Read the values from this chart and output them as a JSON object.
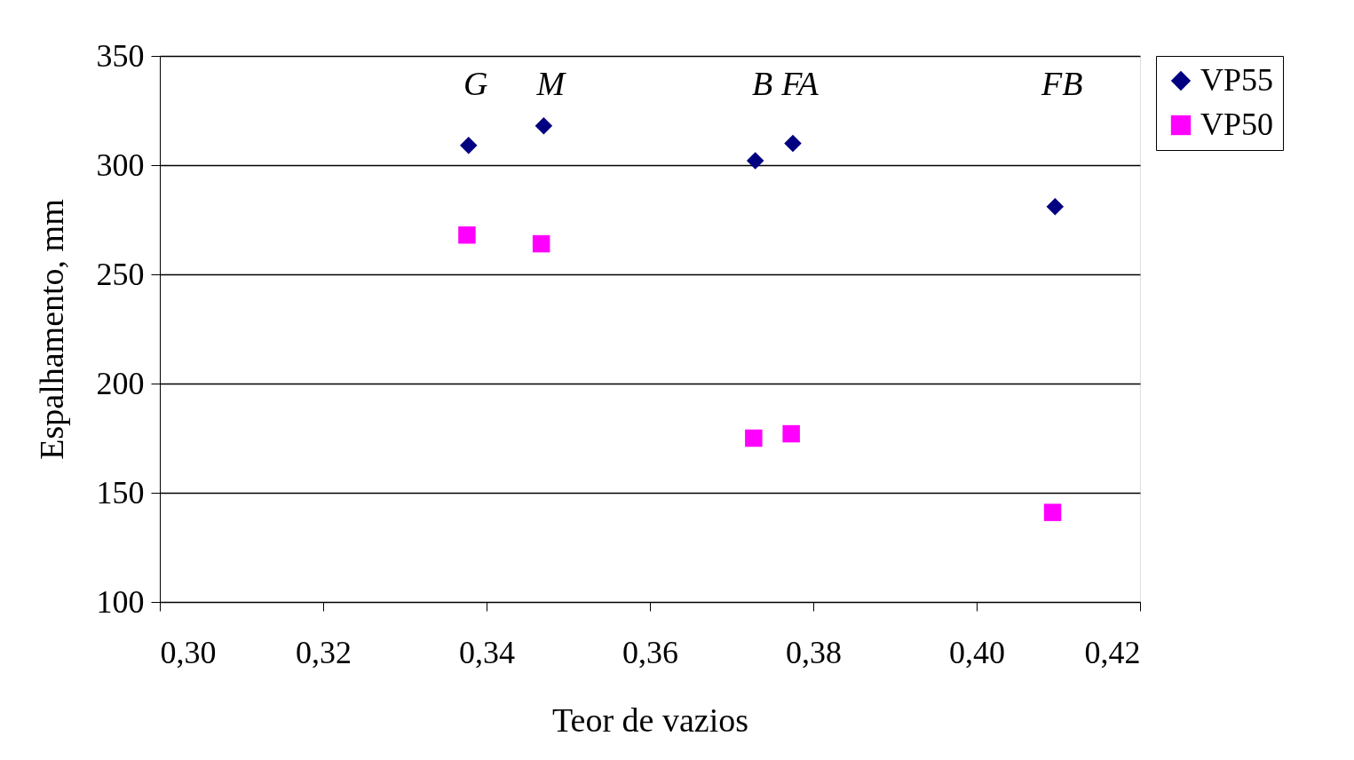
{
  "chart_data": {
    "type": "scatter",
    "xlabel": "Teor de vazios",
    "ylabel": "Espalhamento, mm",
    "xlim": [
      0.3,
      0.42
    ],
    "xticks": [
      {
        "value": 0.3,
        "label": "0,30"
      },
      {
        "value": 0.32,
        "label": "0,32"
      },
      {
        "value": 0.34,
        "label": "0,34"
      },
      {
        "value": 0.36,
        "label": "0,36"
      },
      {
        "value": 0.38,
        "label": "0,38"
      },
      {
        "value": 0.4,
        "label": "0,40"
      },
      {
        "value": 0.42,
        "label": "0,42"
      }
    ],
    "ylim": [
      100,
      350
    ],
    "yticks": [
      100,
      150,
      200,
      250,
      300,
      350
    ],
    "grid": "y",
    "legend": "right",
    "series": [
      {
        "name": "VP55",
        "color": "#000080",
        "marker": "diamond",
        "x": [
          0.3378,
          0.347,
          0.3729,
          0.3775,
          0.4096
        ],
        "values": [
          309,
          318,
          302,
          310,
          281
        ]
      },
      {
        "name": "VP50",
        "color": "#ff00ff",
        "marker": "square",
        "x": [
          0.3376,
          0.3467,
          0.3727,
          0.3773,
          0.4093
        ],
        "values": [
          268,
          264,
          175,
          177,
          141
        ]
      }
    ],
    "annotations": [
      "G",
      "M",
      "B",
      "FA",
      "FB"
    ]
  }
}
